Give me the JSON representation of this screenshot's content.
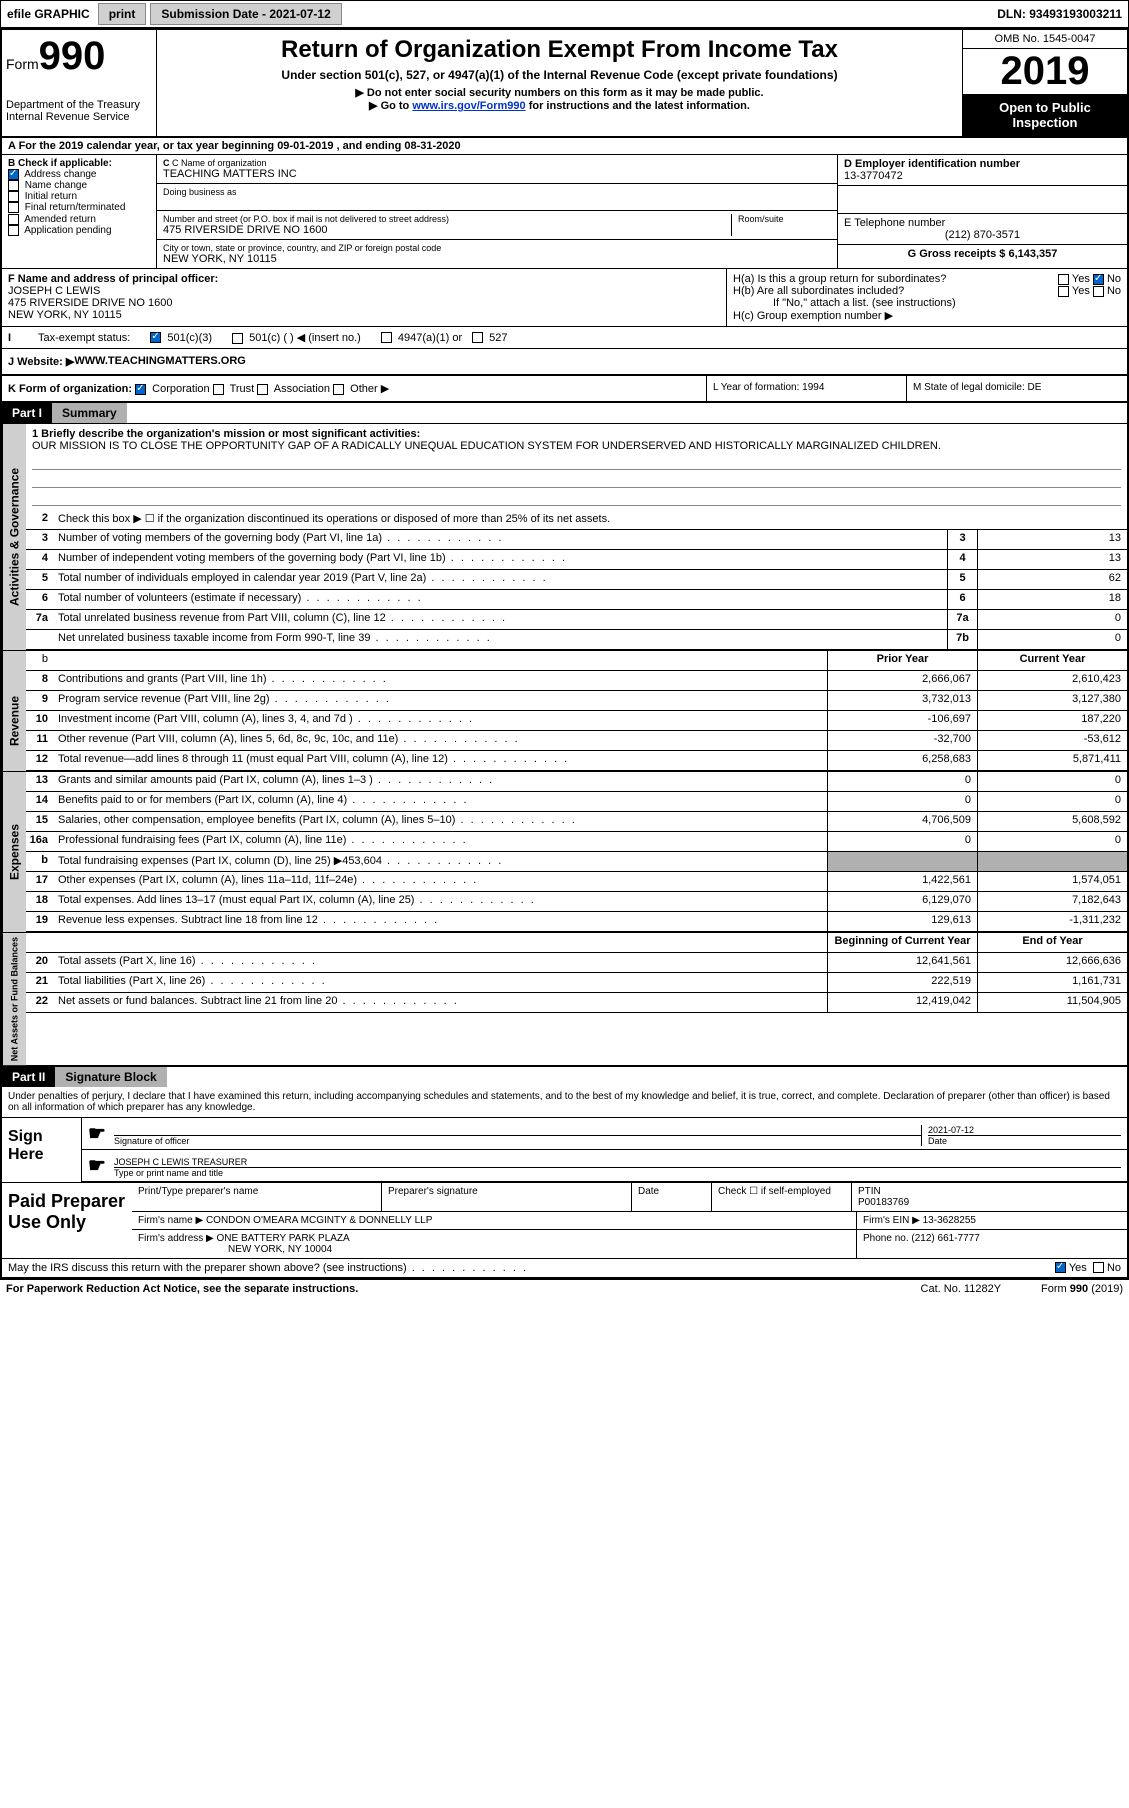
{
  "topbar": {
    "efile": "efile GRAPHIC",
    "print": "print",
    "submission_label": "Submission Date - 2021-07-12",
    "dln_label": "DLN: 93493193003211"
  },
  "header": {
    "form_label": "Form",
    "form_number": "990",
    "dept": "Department of the Treasury\nInternal Revenue Service",
    "title": "Return of Organization Exempt From Income Tax",
    "subtitle": "Under section 501(c), 527, or 4947(a)(1) of the Internal Revenue Code (except private foundations)",
    "instr1": "▶ Do not enter social security numbers on this form as it may be made public.",
    "instr2_pre": "▶ Go to ",
    "instr2_link": "www.irs.gov/Form990",
    "instr2_post": " for instructions and the latest information.",
    "omb": "OMB No. 1545-0047",
    "year": "2019",
    "inspection": "Open to Public Inspection"
  },
  "section_a": "A For the 2019 calendar year, or tax year beginning 09-01-2019   , and ending 08-31-2020",
  "col_b": {
    "label": "B Check if applicable:",
    "items": [
      "Address change",
      "Name change",
      "Initial return",
      "Final return/terminated",
      "Amended return",
      "Application pending"
    ],
    "checked_idx": 0
  },
  "col_c": {
    "name_label": "C Name of organization",
    "name": "TEACHING MATTERS INC",
    "dba_label": "Doing business as",
    "addr_label": "Number and street (or P.O. box if mail is not delivered to street address)",
    "room_label": "Room/suite",
    "addr": "475 RIVERSIDE DRIVE NO 1600",
    "city_label": "City or town, state or province, country, and ZIP or foreign postal code",
    "city": "NEW YORK, NY  10115"
  },
  "col_d": {
    "ein_label": "D Employer identification number",
    "ein": "13-3770472",
    "tel_label": "E Telephone number",
    "tel": "(212) 870-3571",
    "gross_label": "G Gross receipts $ 6,143,357"
  },
  "col_f": {
    "label": "F  Name and address of principal officer:",
    "name": "JOSEPH C LEWIS",
    "addr1": "475 RIVERSIDE DRIVE NO 1600",
    "addr2": "NEW YORK, NY  10115"
  },
  "col_h": {
    "ha": "H(a)  Is this a group return for subordinates?",
    "hb": "H(b)  Are all subordinates included?",
    "hb_note": "If \"No,\" attach a list. (see instructions)",
    "hc": "H(c)  Group exemption number ▶",
    "yes": "Yes",
    "no": "No"
  },
  "row_i": {
    "label": "Tax-exempt status:",
    "opts": [
      "501(c)(3)",
      "501(c) (  ) ◀ (insert no.)",
      "4947(a)(1) or",
      "527"
    ]
  },
  "row_j": {
    "label": "J   Website: ▶",
    "value": "  WWW.TEACHINGMATTERS.ORG"
  },
  "row_k": {
    "label": "K Form of organization:",
    "opts": [
      "Corporation",
      "Trust",
      "Association",
      "Other ▶"
    ],
    "l_label": "L Year of formation: 1994",
    "m_label": "M State of legal domicile: DE"
  },
  "part1": {
    "header": "Part I",
    "title": "Summary",
    "line1_label": "1  Briefly describe the organization's mission or most significant activities:",
    "mission": "OUR MISSION IS TO CLOSE THE OPPORTUNITY GAP OF A RADICALLY UNEQUAL EDUCATION SYSTEM FOR UNDERSERVED AND HISTORICALLY MARGINALIZED CHILDREN.",
    "line2": "Check this box ▶ ☐  if the organization discontinued its operations or disposed of more than 25% of its net assets.",
    "vtab_act": "Activities & Governance",
    "vtab_rev": "Revenue",
    "vtab_exp": "Expenses",
    "vtab_net": "Net Assets or Fund Balances",
    "prior_year": "Prior Year",
    "current_year": "Current Year",
    "boy": "Beginning of Current Year",
    "eoy": "End of Year",
    "lines_gov": [
      {
        "n": "3",
        "d": "Number of voting members of the governing body (Part VI, line 1a)",
        "box": "3",
        "v": "13"
      },
      {
        "n": "4",
        "d": "Number of independent voting members of the governing body (Part VI, line 1b)",
        "box": "4",
        "v": "13"
      },
      {
        "n": "5",
        "d": "Total number of individuals employed in calendar year 2019 (Part V, line 2a)",
        "box": "5",
        "v": "62"
      },
      {
        "n": "6",
        "d": "Total number of volunteers (estimate if necessary)",
        "box": "6",
        "v": "18"
      },
      {
        "n": "7a",
        "d": "Total unrelated business revenue from Part VIII, column (C), line 12",
        "box": "7a",
        "v": "0"
      },
      {
        "n": "",
        "d": "Net unrelated business taxable income from Form 990-T, line 39",
        "box": "7b",
        "v": "0"
      }
    ],
    "lines_rev": [
      {
        "n": "8",
        "d": "Contributions and grants (Part VIII, line 1h)",
        "py": "2,666,067",
        "cy": "2,610,423"
      },
      {
        "n": "9",
        "d": "Program service revenue (Part VIII, line 2g)",
        "py": "3,732,013",
        "cy": "3,127,380"
      },
      {
        "n": "10",
        "d": "Investment income (Part VIII, column (A), lines 3, 4, and 7d )",
        "py": "-106,697",
        "cy": "187,220"
      },
      {
        "n": "11",
        "d": "Other revenue (Part VIII, column (A), lines 5, 6d, 8c, 9c, 10c, and 11e)",
        "py": "-32,700",
        "cy": "-53,612"
      },
      {
        "n": "12",
        "d": "Total revenue—add lines 8 through 11 (must equal Part VIII, column (A), line 12)",
        "py": "6,258,683",
        "cy": "5,871,411"
      }
    ],
    "lines_exp": [
      {
        "n": "13",
        "d": "Grants and similar amounts paid (Part IX, column (A), lines 1–3 )",
        "py": "0",
        "cy": "0"
      },
      {
        "n": "14",
        "d": "Benefits paid to or for members (Part IX, column (A), line 4)",
        "py": "0",
        "cy": "0"
      },
      {
        "n": "15",
        "d": "Salaries, other compensation, employee benefits (Part IX, column (A), lines 5–10)",
        "py": "4,706,509",
        "cy": "5,608,592"
      },
      {
        "n": "16a",
        "d": "Professional fundraising fees (Part IX, column (A), line 11e)",
        "py": "0",
        "cy": "0"
      },
      {
        "n": "b",
        "d": "Total fundraising expenses (Part IX, column (D), line 25) ▶453,604",
        "py": "",
        "cy": "",
        "shaded": true
      },
      {
        "n": "17",
        "d": "Other expenses (Part IX, column (A), lines 11a–11d, 11f–24e)",
        "py": "1,422,561",
        "cy": "1,574,051"
      },
      {
        "n": "18",
        "d": "Total expenses. Add lines 13–17 (must equal Part IX, column (A), line 25)",
        "py": "6,129,070",
        "cy": "7,182,643"
      },
      {
        "n": "19",
        "d": "Revenue less expenses. Subtract line 18 from line 12",
        "py": "129,613",
        "cy": "-1,311,232"
      }
    ],
    "lines_net": [
      {
        "n": "20",
        "d": "Total assets (Part X, line 16)",
        "py": "12,641,561",
        "cy": "12,666,636"
      },
      {
        "n": "21",
        "d": "Total liabilities (Part X, line 26)",
        "py": "222,519",
        "cy": "1,161,731"
      },
      {
        "n": "22",
        "d": "Net assets or fund balances. Subtract line 21 from line 20",
        "py": "12,419,042",
        "cy": "11,504,905"
      }
    ]
  },
  "part2": {
    "header": "Part II",
    "title": "Signature Block",
    "declaration": "Under penalties of perjury, I declare that I have examined this return, including accompanying schedules and statements, and to the best of my knowledge and belief, it is true, correct, and complete. Declaration of preparer (other than officer) is based on all information of which preparer has any knowledge.",
    "sign_here": "Sign Here",
    "sig_officer": "Signature of officer",
    "sig_date": "2021-07-12",
    "date_label": "Date",
    "officer_name": "JOSEPH C LEWIS  TREASURER",
    "type_label": "Type or print name and title",
    "paid_prep": "Paid Preparer Use Only",
    "prep_name_label": "Print/Type preparer's name",
    "prep_sig_label": "Preparer's signature",
    "prep_date_label": "Date",
    "check_self": "Check ☐ if self-employed",
    "ptin_label": "PTIN",
    "ptin": "P00183769",
    "firm_name_label": "Firm's name    ▶",
    "firm_name": "CONDON O'MEARA MCGINTY & DONNELLY LLP",
    "firm_ein_label": "Firm's EIN ▶",
    "firm_ein": "13-3628255",
    "firm_addr_label": "Firm's address ▶",
    "firm_addr1": "ONE BATTERY PARK PLAZA",
    "firm_addr2": "NEW YORK, NY  10004",
    "phone_label": "Phone no.",
    "phone": "(212) 661-7777",
    "discuss": "May the IRS discuss this return with the preparer shown above? (see instructions)",
    "yes": "Yes",
    "no": "No"
  },
  "footer": {
    "paperwork": "For Paperwork Reduction Act Notice, see the separate instructions.",
    "cat": "Cat. No. 11282Y",
    "form": "Form 990 (2019)"
  }
}
